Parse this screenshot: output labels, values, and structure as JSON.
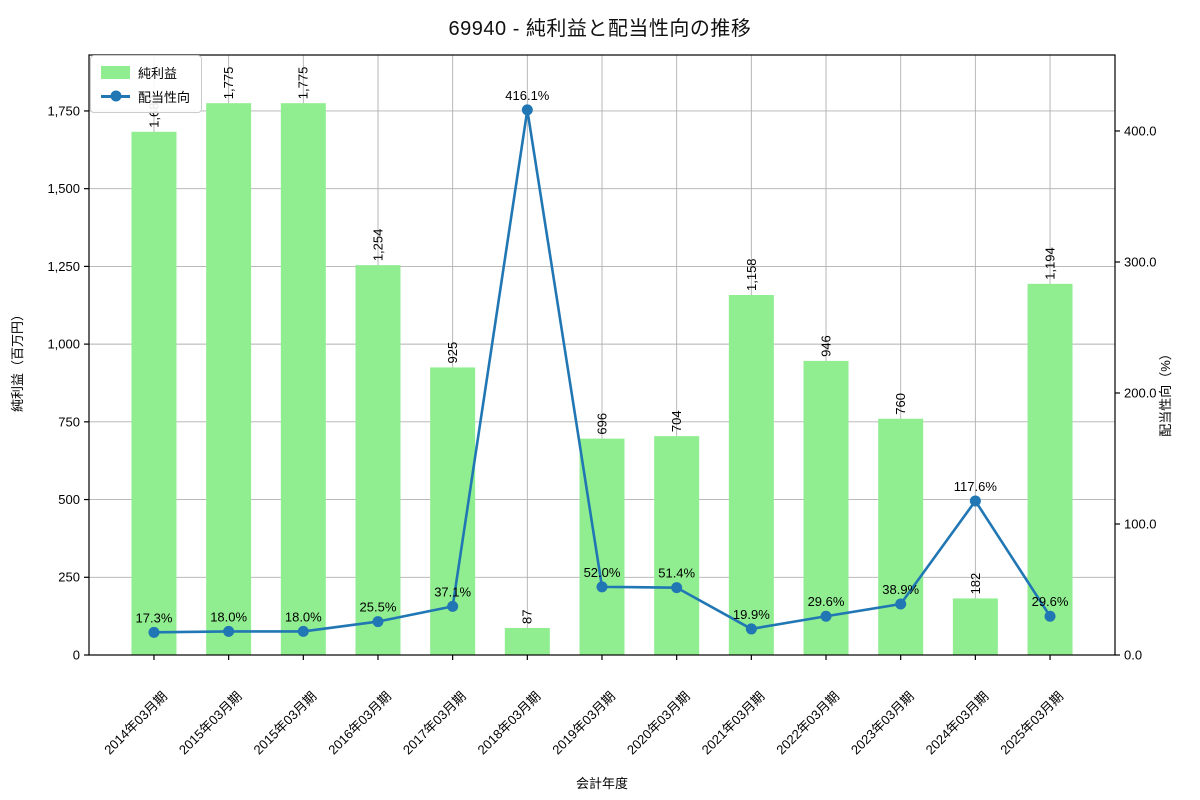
{
  "chart_data": {
    "type": "combo",
    "title": "69940 - 純利益と配当性向の推移",
    "xlabel": "会計年度",
    "ylabel_left": "純利益（百万円）",
    "ylabel_right": "配当性向（%）",
    "categories": [
      "2014年03月期",
      "2015年03月期",
      "2015年03月期",
      "2016年03月期",
      "2017年03月期",
      "2018年03月期",
      "2019年03月期",
      "2020年03月期",
      "2021年03月期",
      "2022年03月期",
      "2023年03月期",
      "2024年03月期",
      "2025年03月期"
    ],
    "series": [
      {
        "name": "純利益",
        "type": "bar",
        "color": "#90ee90",
        "values": [
          1683,
          1775,
          1775,
          1254,
          925,
          87,
          696,
          704,
          1158,
          946,
          760,
          182,
          1194
        ],
        "labels": [
          "1,683",
          "1,775",
          "1,775",
          "1,254",
          "925",
          "87",
          "696",
          "704",
          "1,158",
          "946",
          "760",
          "182",
          "1,194"
        ]
      },
      {
        "name": "配当性向",
        "type": "line",
        "color": "#2077b4",
        "values": [
          17.3,
          18.0,
          18.0,
          25.5,
          37.1,
          416.1,
          52.0,
          51.4,
          19.9,
          29.6,
          38.9,
          117.6,
          29.6
        ],
        "labels": [
          "17.3%",
          "18.0%",
          "18.0%",
          "25.5%",
          "37.1%",
          "416.1%",
          "52.0%",
          "51.4%",
          "19.9%",
          "29.6%",
          "38.9%",
          "117.6%",
          "29.6%"
        ]
      }
    ],
    "left_axis": {
      "ticks": [
        0,
        250,
        500,
        750,
        1000,
        1250,
        1500,
        1750
      ],
      "tick_labels": [
        "0",
        "250",
        "500",
        "750",
        "1,000",
        "1,250",
        "1,500",
        "1,750"
      ],
      "max": 1930
    },
    "right_axis": {
      "ticks": [
        0,
        100,
        200,
        300,
        400
      ],
      "tick_labels": [
        "0.0",
        "100.0",
        "200.0",
        "300.0",
        "400.0"
      ],
      "max": 458
    },
    "grid": true,
    "legend_position": "upper-left",
    "colors": {
      "bar": "#90ee90",
      "line": "#2077b4",
      "grid": "#b0b0b0",
      "axis": "#000000",
      "legend_border": "#cccccc"
    }
  }
}
